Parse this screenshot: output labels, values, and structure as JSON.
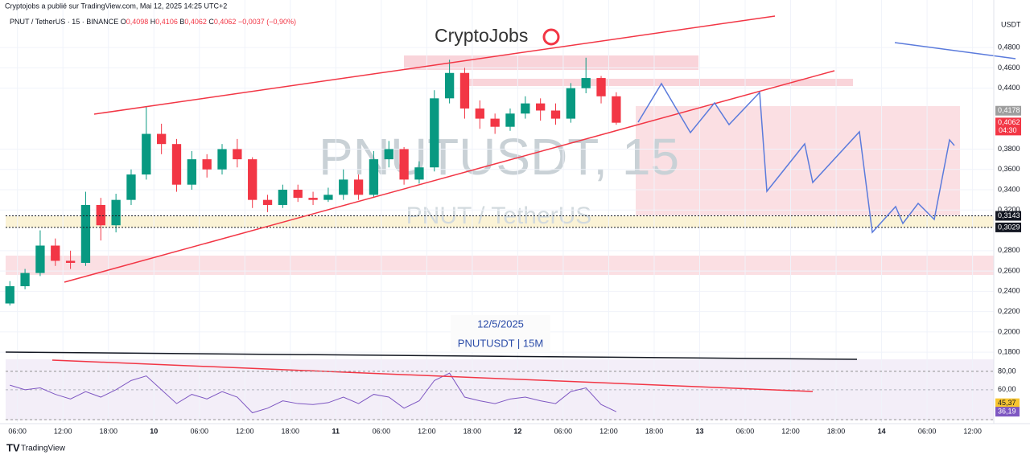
{
  "chart_data": {
    "type": "candlestick",
    "header": "Cryptojobs a publié sur TradingView.com, Mai 12, 2025 14:25 UTC+2",
    "legend": {
      "symbol": "PNUT / TetherUS · 15 · BINANCE",
      "o": "O",
      "o_val": "0,4098",
      "h": "H",
      "h_val": "0,4106",
      "b": "B",
      "b_val": "0,4062",
      "c": "C",
      "c_val": "0,4062",
      "change": "−0,0037 (−0,90%)"
    },
    "logo": "CryptoJobs",
    "watermark": "PNUTUSDT, 15",
    "watermark_sub": "PNUT / TetherUS",
    "annotation_date": "12/5/2025",
    "annotation_symbol": "PNUTUSDT | 15M",
    "currency": "USDT",
    "countdown": "04:30",
    "footer": "TradingView",
    "up_color": "#089981",
    "down_color": "#f23645",
    "rsi_color": "#7e57c2",
    "xlim": [
      -2.3,
      128.8
    ],
    "ylim": [
      0.173,
      0.511
    ],
    "rsi_ylim": [
      25,
      93
    ],
    "xticks": [
      {
        "value": 0,
        "label": "06:00"
      },
      {
        "value": 6,
        "label": "12:00"
      },
      {
        "value": 12,
        "label": "18:00"
      },
      {
        "value": 18,
        "label": "10"
      },
      {
        "value": 24,
        "label": "06:00"
      },
      {
        "value": 30,
        "label": "12:00"
      },
      {
        "value": 36,
        "label": "18:00"
      },
      {
        "value": 42,
        "label": "11"
      },
      {
        "value": 48,
        "label": "06:00"
      },
      {
        "value": 54,
        "label": "12:00"
      },
      {
        "value": 60,
        "label": "18:00"
      },
      {
        "value": 66,
        "label": "12"
      },
      {
        "value": 72,
        "label": "06:00"
      },
      {
        "value": 78,
        "label": "12:00"
      },
      {
        "value": 84,
        "label": "18:00"
      },
      {
        "value": 90,
        "label": "13"
      },
      {
        "value": 96,
        "label": "06:00"
      },
      {
        "value": 102,
        "label": "12:00"
      },
      {
        "value": 108,
        "label": "18:00"
      },
      {
        "value": 114,
        "label": "14"
      },
      {
        "value": 120,
        "label": "06:00"
      },
      {
        "value": 126,
        "label": "12:00"
      }
    ],
    "yticks": [
      {
        "value": 0.48,
        "label": "0,4800"
      },
      {
        "value": 0.46,
        "label": "0,4600"
      },
      {
        "value": 0.44,
        "label": "0,4400"
      },
      {
        "value": 0.38,
        "label": "0,3800"
      },
      {
        "value": 0.36,
        "label": "0,3600"
      },
      {
        "value": 0.34,
        "label": "0,3400"
      },
      {
        "value": 0.32,
        "label": "0,3200"
      },
      {
        "value": 0.28,
        "label": "0,2800"
      },
      {
        "value": 0.26,
        "label": "0,2600"
      },
      {
        "value": 0.24,
        "label": "0,2400"
      },
      {
        "value": 0.22,
        "label": "0,2200"
      },
      {
        "value": 0.2,
        "label": "0,2000"
      },
      {
        "value": 0.18,
        "label": "0,1800"
      }
    ],
    "price_labels": [
      {
        "value": 0.4178,
        "label": "0,4178",
        "color": "#9e9e9e"
      },
      {
        "value": 0.4062,
        "label": "0,4062",
        "color": "#f23645"
      },
      {
        "value": 0.3143,
        "label": "0,3143",
        "color": "#131722"
      },
      {
        "value": 0.3029,
        "label": "0,3029",
        "color": "#131722"
      }
    ],
    "rsi_yticks": [
      {
        "value": 80,
        "label": "80,00"
      },
      {
        "value": 60,
        "label": "60,00"
      }
    ],
    "rsi_labels": [
      {
        "value": 45.37,
        "label": "45,37",
        "color": "#f7c531"
      },
      {
        "value": 36.19,
        "label": "36,19",
        "color": "#7e57c2"
      }
    ],
    "candles": {
      "x": [
        -1,
        1,
        3,
        5,
        7,
        9,
        11,
        13,
        15,
        17,
        19,
        21,
        23,
        25,
        27,
        29,
        31,
        33,
        35,
        37,
        39,
        41,
        43,
        45,
        47,
        49,
        51,
        53,
        55,
        57,
        59,
        61,
        63,
        65,
        67,
        69,
        71,
        73,
        75,
        77,
        79
      ],
      "open": [
        0.228,
        0.245,
        0.258,
        0.285,
        0.27,
        0.268,
        0.325,
        0.305,
        0.33,
        0.355,
        0.395,
        0.385,
        0.345,
        0.37,
        0.36,
        0.38,
        0.37,
        0.33,
        0.325,
        0.34,
        0.332,
        0.33,
        0.335,
        0.35,
        0.335,
        0.37,
        0.38,
        0.35,
        0.362,
        0.43,
        0.455,
        0.42,
        0.41,
        0.402,
        0.415,
        0.425,
        0.418,
        0.41,
        0.44,
        0.45,
        0.432
      ],
      "high": [
        0.25,
        0.262,
        0.3,
        0.292,
        0.28,
        0.338,
        0.332,
        0.336,
        0.36,
        0.422,
        0.405,
        0.39,
        0.378,
        0.375,
        0.385,
        0.39,
        0.372,
        0.335,
        0.345,
        0.345,
        0.338,
        0.342,
        0.36,
        0.355,
        0.378,
        0.388,
        0.382,
        0.368,
        0.438,
        0.468,
        0.46,
        0.428,
        0.415,
        0.42,
        0.432,
        0.43,
        0.425,
        0.445,
        0.47,
        0.452,
        0.436
      ],
      "low": [
        0.226,
        0.242,
        0.255,
        0.265,
        0.262,
        0.265,
        0.29,
        0.298,
        0.325,
        0.35,
        0.375,
        0.338,
        0.34,
        0.352,
        0.355,
        0.362,
        0.322,
        0.318,
        0.322,
        0.328,
        0.325,
        0.328,
        0.33,
        0.33,
        0.332,
        0.362,
        0.345,
        0.346,
        0.358,
        0.425,
        0.41,
        0.4,
        0.395,
        0.398,
        0.41,
        0.408,
        0.404,
        0.406,
        0.435,
        0.425,
        0.404
      ],
      "close": [
        0.245,
        0.258,
        0.285,
        0.27,
        0.268,
        0.325,
        0.305,
        0.33,
        0.355,
        0.395,
        0.385,
        0.345,
        0.37,
        0.36,
        0.38,
        0.37,
        0.33,
        0.325,
        0.34,
        0.332,
        0.33,
        0.335,
        0.35,
        0.335,
        0.37,
        0.38,
        0.35,
        0.362,
        0.43,
        0.455,
        0.42,
        0.41,
        0.402,
        0.415,
        0.425,
        0.418,
        0.41,
        0.44,
        0.45,
        0.432,
        0.406
      ]
    },
    "rsi": {
      "values": [
        65,
        60,
        62,
        55,
        50,
        58,
        52,
        60,
        70,
        75,
        60,
        45,
        55,
        50,
        58,
        52,
        35,
        40,
        48,
        45,
        44,
        46,
        52,
        45,
        55,
        52,
        40,
        48,
        70,
        78,
        52,
        48,
        45,
        50,
        52,
        48,
        45,
        58,
        62,
        44,
        36.19
      ]
    }
  }
}
